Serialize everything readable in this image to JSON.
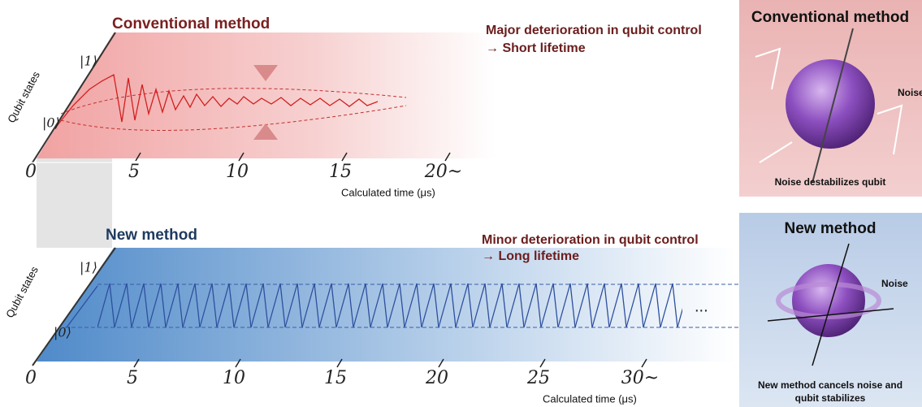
{
  "top_panel": {
    "title": "Conventional method",
    "note_line1": "Major deterioration in qubit control",
    "note_line2": "→ Short lifetime",
    "y_axis_label": "Qubit states",
    "state_1": "|1⟩",
    "state_0": "|0⟩",
    "x_ticks": [
      "0",
      "5",
      "10",
      "15",
      "20~"
    ],
    "x_axis_label": "Calculated time (μs)"
  },
  "bottom_panel": {
    "title": "New method",
    "note_line1": "Minor deterioration in qubit control",
    "note_line2": "→ Long lifetime",
    "y_axis_label": "Qubit states",
    "state_1": "|1⟩",
    "state_0": "|0⟩",
    "x_ticks": [
      "0",
      "5",
      "10",
      "15",
      "20",
      "25",
      "30~"
    ],
    "x_axis_label": "Calculated time (μs)",
    "ellipsis": "..."
  },
  "top_inset": {
    "title": "Conventional method",
    "noise": "Noise",
    "caption": "Noise destabilizes qubit"
  },
  "bottom_inset": {
    "title": "New method",
    "noise": "Noise",
    "caption_line1": "New method cancels noise and",
    "caption_line2": "qubit stabilizes"
  }
}
